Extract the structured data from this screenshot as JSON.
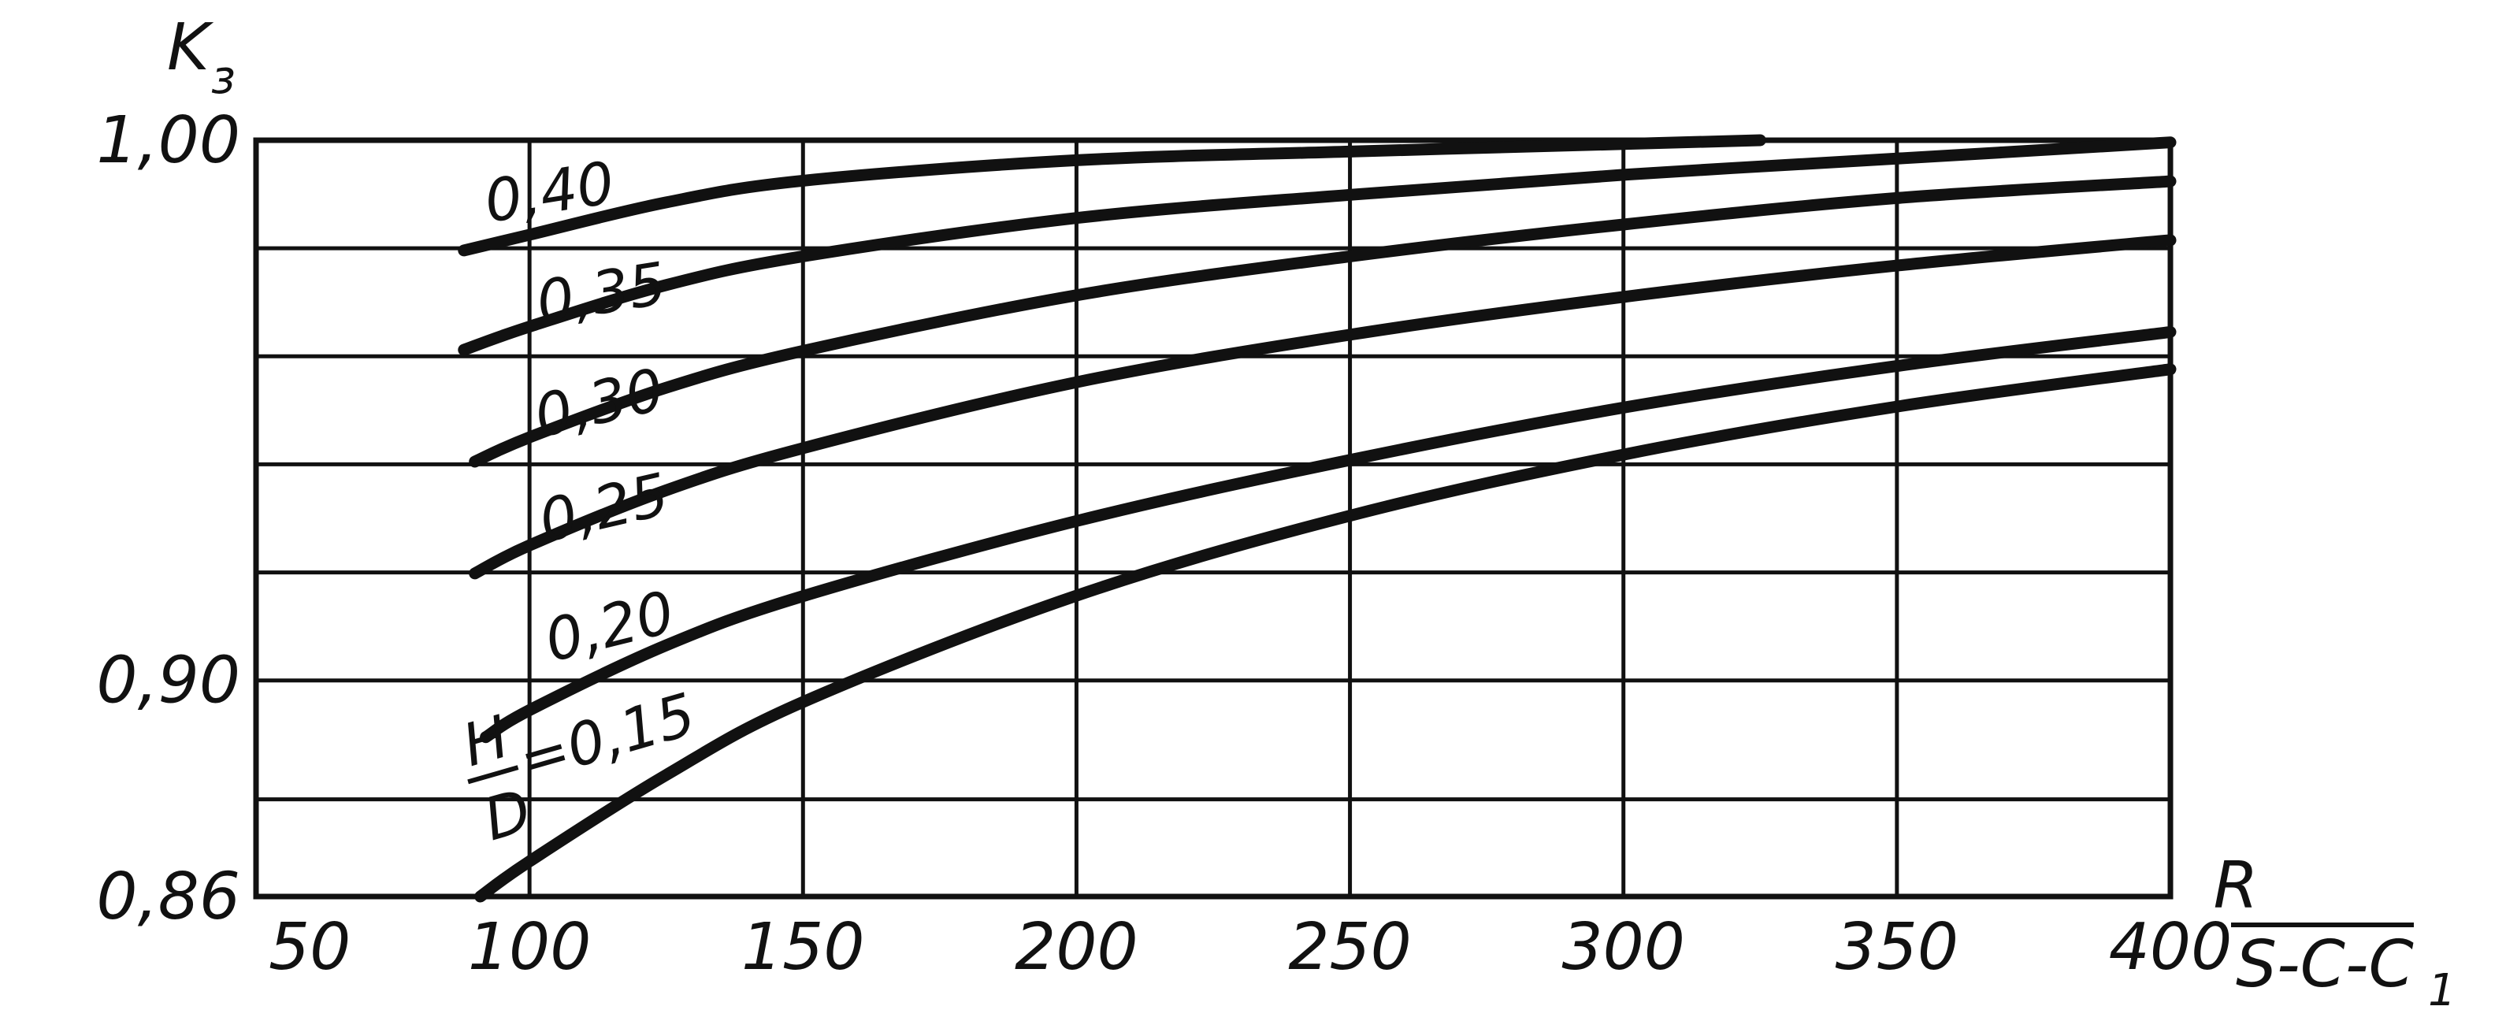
{
  "chart_data": {
    "type": "line",
    "title": "",
    "ylabel": "K",
    "ylabel_subscript": "з",
    "xlabel": {
      "numerator": "R",
      "denominator_main": "S-C-C",
      "denominator_subscript": "1"
    },
    "xlim": [
      50,
      400
    ],
    "ylim": [
      0.86,
      1.0
    ],
    "x_ticks": [
      {
        "value": 50,
        "label": "50"
      },
      {
        "value": 100,
        "label": "100"
      },
      {
        "value": 150,
        "label": "150"
      },
      {
        "value": 200,
        "label": "200"
      },
      {
        "value": 250,
        "label": "250"
      },
      {
        "value": 300,
        "label": "300"
      },
      {
        "value": 350,
        "label": "350"
      },
      {
        "value": 400,
        "label": "400"
      }
    ],
    "y_ticks_labeled": [
      {
        "value": 1.0,
        "label": "1,00"
      },
      {
        "value": 0.9,
        "label": "0,90"
      },
      {
        "value": 0.86,
        "label": "0,86"
      }
    ],
    "y_gridlines": [
      0.86,
      0.878,
      0.9,
      0.92,
      0.94,
      0.96,
      0.98,
      1.0
    ],
    "grid": true,
    "series": [
      {
        "name": "0,40",
        "points": [
          [
            88,
            0.9796
          ],
          [
            100,
            0.9825
          ],
          [
            125,
            0.9885
          ],
          [
            150,
            0.9925
          ],
          [
            200,
            0.9963
          ],
          [
            250,
            0.9979
          ],
          [
            300,
            0.9993
          ],
          [
            325,
            1.0
          ]
        ]
      },
      {
        "name": "0,35",
        "points": [
          [
            88,
            0.9612
          ],
          [
            100,
            0.9655
          ],
          [
            125,
            0.9732
          ],
          [
            150,
            0.9785
          ],
          [
            200,
            0.9856
          ],
          [
            250,
            0.9899
          ],
          [
            300,
            0.9936
          ],
          [
            350,
            0.9966
          ],
          [
            400,
            0.9996
          ]
        ]
      },
      {
        "name": "0,30",
        "points": [
          [
            90,
            0.9405
          ],
          [
            100,
            0.945
          ],
          [
            125,
            0.9542
          ],
          [
            150,
            0.961
          ],
          [
            200,
            0.9713
          ],
          [
            250,
            0.9785
          ],
          [
            300,
            0.9844
          ],
          [
            350,
            0.9893
          ],
          [
            400,
            0.9924
          ]
        ]
      },
      {
        "name": "0,25",
        "points": [
          [
            90,
            0.9198
          ],
          [
            100,
            0.925
          ],
          [
            125,
            0.9352
          ],
          [
            150,
            0.943
          ],
          [
            200,
            0.9552
          ],
          [
            250,
            0.964
          ],
          [
            300,
            0.971
          ],
          [
            350,
            0.9768
          ],
          [
            400,
            0.9815
          ]
        ]
      },
      {
        "name": "0,20",
        "points": [
          [
            92,
            0.8895
          ],
          [
            100,
            0.8945
          ],
          [
            125,
            0.9065
          ],
          [
            150,
            0.9156
          ],
          [
            200,
            0.9295
          ],
          [
            250,
            0.9408
          ],
          [
            300,
            0.9505
          ],
          [
            350,
            0.9582
          ],
          [
            400,
            0.9645
          ]
        ]
      },
      {
        "name": "H/D=0,15",
        "points": [
          [
            91,
            0.86
          ],
          [
            100,
            0.8665
          ],
          [
            125,
            0.8825
          ],
          [
            150,
            0.896
          ],
          [
            200,
            0.9157
          ],
          [
            250,
            0.9305
          ],
          [
            300,
            0.9418
          ],
          [
            350,
            0.9507
          ],
          [
            400,
            0.9576
          ]
        ]
      }
    ],
    "series_label_text": {
      "s040": "0,40",
      "s035": "0,35",
      "s030": "0,30",
      "s025": "0,25",
      "s020": "0,20",
      "s015_fraction_top": "H",
      "s015_fraction_bottom": "D",
      "s015_value": "=0,15"
    }
  }
}
